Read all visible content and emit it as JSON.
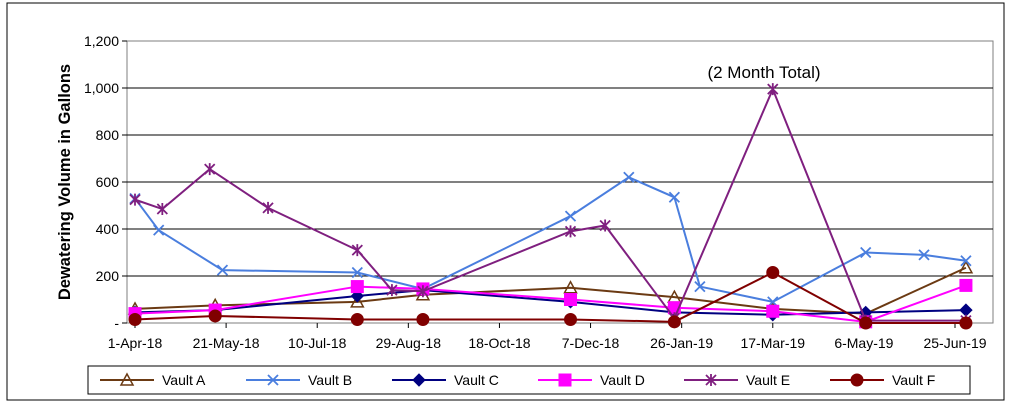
{
  "chart_data": {
    "type": "line",
    "title": "",
    "xlabel": "",
    "ylabel": "Dewatering Volume in Gallons",
    "annotation": "(2 Month Total)",
    "x_range": [
      "1-Apr-18",
      "25-Jun-19"
    ],
    "xticks": [
      "1-Apr-18",
      "21-May-18",
      "10-Jul-18",
      "29-Aug-18",
      "18-Oct-18",
      "7-Dec-18",
      "26-Jan-19",
      "17-Mar-19",
      "6-May-19",
      "25-Jun-19"
    ],
    "ylim": [
      0,
      1200
    ],
    "yticks": [
      0,
      200,
      400,
      600,
      800,
      1000,
      1200
    ],
    "ytick_labels": [
      "-",
      "200",
      "400",
      "600",
      "800",
      "1,000",
      "1,200"
    ],
    "grid": "horizontal",
    "legend_position": "bottom",
    "series": [
      {
        "name": "Vault A",
        "color": "#6b3a13",
        "marker": "triangle",
        "points": [
          [
            "1-Apr-18",
            60
          ],
          [
            "15-May-18",
            75
          ],
          [
            "1-Aug-18",
            90
          ],
          [
            "6-Sep-18",
            120
          ],
          [
            "26-Nov-18",
            150
          ],
          [
            "22-Jan-19",
            110
          ],
          [
            "17-Mar-19",
            60
          ],
          [
            "7-May-19",
            40
          ],
          [
            "1-Jul-19",
            235
          ]
        ]
      },
      {
        "name": "Vault B",
        "color": "#4a7ede",
        "marker": "x",
        "points": [
          [
            "1-Apr-18",
            530
          ],
          [
            "14-Apr-18",
            395
          ],
          [
            "19-May-18",
            225
          ],
          [
            "1-Aug-18",
            215
          ],
          [
            "6-Sep-18",
            145
          ],
          [
            "26-Nov-18",
            455
          ],
          [
            "28-Dec-18",
            620
          ],
          [
            "22-Jan-19",
            535
          ],
          [
            "5-Feb-19",
            155
          ],
          [
            "17-Mar-19",
            90
          ],
          [
            "7-May-19",
            300
          ],
          [
            "8-Jun-19",
            290
          ],
          [
            "1-Jul-19",
            265
          ]
        ]
      },
      {
        "name": "Vault C",
        "color": "#000080",
        "marker": "diamond",
        "points": [
          [
            "1-Apr-18",
            45
          ],
          [
            "15-May-18",
            55
          ],
          [
            "1-Aug-18",
            115
          ],
          [
            "6-Sep-18",
            140
          ],
          [
            "26-Nov-18",
            90
          ],
          [
            "22-Jan-19",
            45
          ],
          [
            "17-Mar-19",
            35
          ],
          [
            "7-May-19",
            45
          ],
          [
            "1-Jul-19",
            55
          ]
        ]
      },
      {
        "name": "Vault D",
        "color": "#ff00ff",
        "marker": "square",
        "points": [
          [
            "1-Apr-18",
            40
          ],
          [
            "15-May-18",
            55
          ],
          [
            "1-Aug-18",
            155
          ],
          [
            "6-Sep-18",
            145
          ],
          [
            "26-Nov-18",
            100
          ],
          [
            "22-Jan-19",
            65
          ],
          [
            "17-Mar-19",
            50
          ],
          [
            "7-May-19",
            5
          ],
          [
            "1-Jul-19",
            160
          ]
        ]
      },
      {
        "name": "Vault E",
        "color": "#7f1f7f",
        "marker": "asterisk",
        "points": [
          [
            "1-Apr-18",
            525
          ],
          [
            "16-Apr-18",
            485
          ],
          [
            "12-May-18",
            655
          ],
          [
            "13-Jun-18",
            490
          ],
          [
            "1-Aug-18",
            310
          ],
          [
            "20-Aug-18",
            140
          ],
          [
            "6-Sep-18",
            135
          ],
          [
            "26-Nov-18",
            390
          ],
          [
            "15-Dec-18",
            415
          ],
          [
            "22-Jan-19",
            20
          ],
          [
            "17-Mar-19",
            995
          ],
          [
            "7-May-19",
            10
          ],
          [
            "1-Jul-19",
            10
          ]
        ]
      },
      {
        "name": "Vault F",
        "color": "#800000",
        "marker": "circle",
        "points": [
          [
            "1-Apr-18",
            15
          ],
          [
            "15-May-18",
            30
          ],
          [
            "1-Aug-18",
            15
          ],
          [
            "6-Sep-18",
            15
          ],
          [
            "26-Nov-18",
            15
          ],
          [
            "22-Jan-19",
            5
          ],
          [
            "17-Mar-19",
            215
          ],
          [
            "7-May-19",
            0
          ],
          [
            "1-Jul-19",
            0
          ]
        ]
      }
    ]
  }
}
